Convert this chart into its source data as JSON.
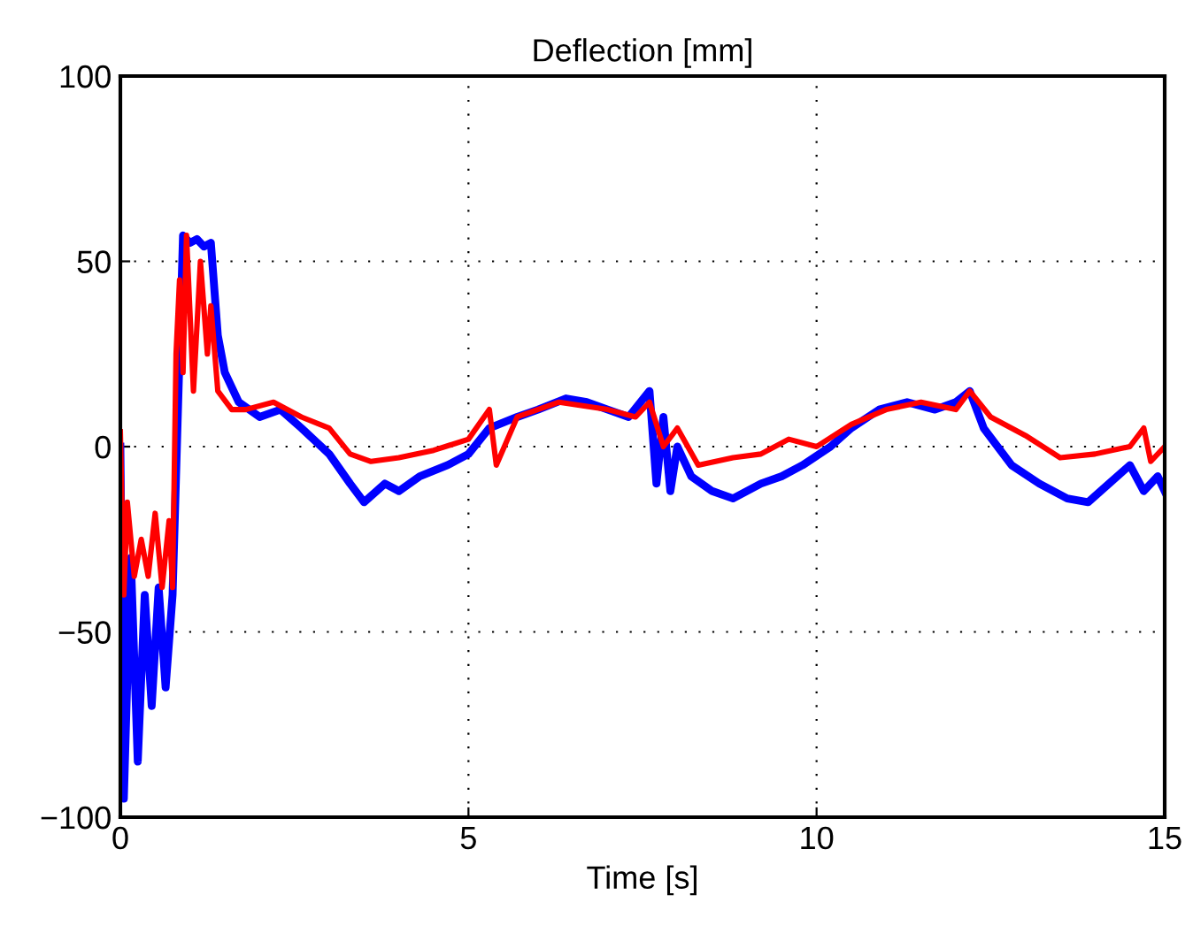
{
  "chart_data": {
    "type": "line",
    "title": "Deflection [mm]",
    "xlabel": "Time [s]",
    "xlim": [
      0,
      15
    ],
    "ylim": [
      -100,
      100
    ],
    "xticks": [
      0,
      5,
      10,
      15
    ],
    "yticks": [
      -100,
      -50,
      0,
      50,
      100
    ],
    "grid": true,
    "line_style": "solid",
    "series": [
      {
        "color": "#0000ff",
        "x": [
          0,
          0.05,
          0.15,
          0.25,
          0.35,
          0.45,
          0.55,
          0.65,
          0.75,
          0.9,
          1.0,
          1.1,
          1.2,
          1.3,
          1.4,
          1.5,
          1.7,
          2.0,
          2.3,
          2.6,
          3.0,
          3.3,
          3.5,
          3.8,
          4.0,
          4.3,
          4.7,
          5.0,
          5.3,
          5.7,
          6.0,
          6.4,
          6.7,
          7.0,
          7.3,
          7.6,
          7.7,
          7.8,
          7.9,
          8.0,
          8.2,
          8.5,
          8.8,
          9.2,
          9.5,
          9.8,
          10.2,
          10.5,
          10.9,
          11.3,
          11.7,
          12.0,
          12.2,
          12.4,
          12.8,
          13.2,
          13.6,
          13.9,
          14.2,
          14.5,
          14.7,
          14.9,
          15.0
        ],
        "values": [
          0,
          -95,
          -30,
          -85,
          -40,
          -70,
          -38,
          -65,
          -40,
          57,
          55,
          56,
          54,
          55,
          30,
          20,
          12,
          8,
          10,
          5,
          -2,
          -10,
          -15,
          -10,
          -12,
          -8,
          -5,
          -2,
          5,
          8,
          10,
          13,
          12,
          10,
          8,
          15,
          -10,
          8,
          -12,
          0,
          -8,
          -12,
          -14,
          -10,
          -8,
          -5,
          0,
          5,
          10,
          12,
          10,
          12,
          15,
          5,
          -5,
          -10,
          -14,
          -15,
          -10,
          -5,
          -12,
          -8,
          -12
        ]
      },
      {
        "color": "#ff0000",
        "x": [
          0,
          0.05,
          0.1,
          0.2,
          0.3,
          0.4,
          0.5,
          0.6,
          0.7,
          0.75,
          0.8,
          0.85,
          0.9,
          0.95,
          1.05,
          1.15,
          1.25,
          1.3,
          1.4,
          1.6,
          1.8,
          2.2,
          2.6,
          3.0,
          3.3,
          3.6,
          4.0,
          4.5,
          5.0,
          5.3,
          5.4,
          5.7,
          6.3,
          7.0,
          7.4,
          7.6,
          7.8,
          8.0,
          8.3,
          8.8,
          9.2,
          9.6,
          10.0,
          10.5,
          11.0,
          11.5,
          12.0,
          12.2,
          12.5,
          13.0,
          13.5,
          14.0,
          14.5,
          14.7,
          14.8,
          15.0
        ],
        "values": [
          4,
          -40,
          -15,
          -35,
          -25,
          -35,
          -18,
          -38,
          -20,
          -38,
          25,
          45,
          20,
          57,
          15,
          50,
          25,
          38,
          15,
          10,
          10,
          12,
          8,
          5,
          -2,
          -4,
          -3,
          -1,
          2,
          10,
          -5,
          8,
          12,
          10,
          8,
          12,
          0,
          5,
          -5,
          -3,
          -2,
          2,
          0,
          6,
          10,
          12,
          10,
          15,
          8,
          3,
          -3,
          -2,
          0,
          5,
          -4,
          0
        ]
      }
    ]
  }
}
